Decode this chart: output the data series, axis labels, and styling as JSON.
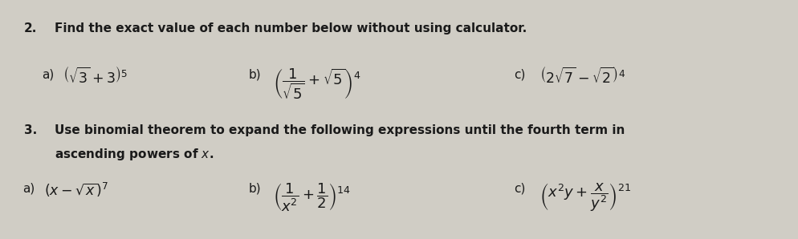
{
  "bg_color": "#d0cdc5",
  "text_color": "#1a1a1a",
  "fig_width": 9.94,
  "fig_height": 2.98,
  "dpi": 100,
  "q2_number": "2.",
  "q2_text": "Find the exact value of each number below without using calculator.",
  "q2a_label": "a)",
  "q2a_expr": "$\\left(\\sqrt{3}+3\\right)^{5}$",
  "q2b_label": "b)",
  "q2b_expr": "$\\left(\\dfrac{1}{\\sqrt{5}}+\\sqrt{5}\\right)^{4}$",
  "q2c_label": "c)",
  "q2c_expr": "$\\left(2\\sqrt{7}-\\sqrt{2}\\right)^{4}$",
  "q3_number": "3.",
  "q3_text": "Use binomial theorem to expand the following expressions until the fourth term in",
  "q3_text2": "ascending powers of $x$.",
  "q3a_label": "a)",
  "q3a_expr": "$\\left(x-\\sqrt{x}\\right)^{7}$",
  "q3b_label": "b)",
  "q3b_expr": "$\\left(\\dfrac{1}{x^{2}}+\\dfrac{1}{2}\\right)^{14}$",
  "q3c_label": "c)",
  "q3c_expr": "$\\left(x^{2}y+\\dfrac{x}{y^{2}}\\right)^{21}$",
  "fs_bold": 11,
  "fs_math": 12.5,
  "fs_label": 11
}
